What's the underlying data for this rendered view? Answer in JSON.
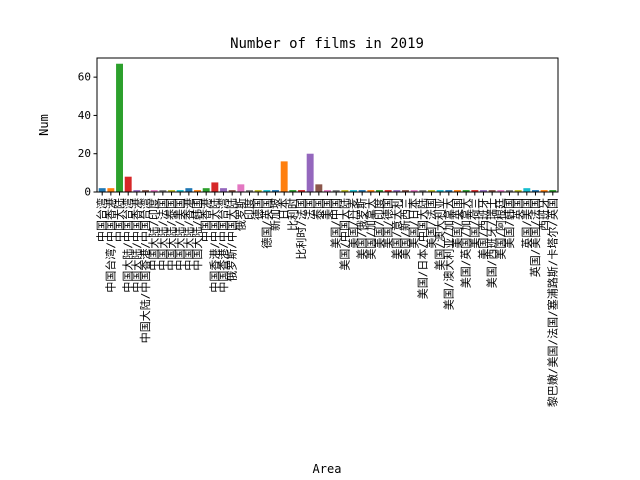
{
  "chart_data": {
    "type": "bar",
    "title": "Number of films in 2019",
    "xlabel": "Area",
    "ylabel": "Num",
    "ylim": [
      0,
      70
    ],
    "yticks": [
      0,
      20,
      40,
      60
    ],
    "grid": false,
    "categories": [
      "中国台湾",
      "中国台湾/中国香港",
      "中国大陆",
      "中国大陆/中国台湾",
      "中国大陆/中国香港",
      "中国大陆/中国香港/中国台湾",
      "中国大陆/印度",
      "中国大陆/法国",
      "中国大陆/泰国",
      "中国大陆/美国",
      "中国大陆/香港",
      "中国大陆/韩国",
      "中国香港",
      "中国香港/中国大陆",
      "中国香港/中国台湾",
      "俄罗斯/中国大陆",
      "俄罗斯",
      "印度",
      "德国",
      "德国/英国",
      "新加坡",
      "日本",
      "比利时",
      "比利时/法国",
      "法国",
      "泰国",
      "美国",
      "美国/中国",
      "美国/中国大陆",
      "美国/丹麦",
      "美国/俄罗斯",
      "美国/加拿大",
      "美国/印度",
      "美国/德国",
      "美国/意大利",
      "美国/新西兰",
      "美国/日本",
      "美国/日本/中国大陆",
      "美国/法国",
      "美国/澳大利亚",
      "美国/澳大利亚/加拿大",
      "美国/英国",
      "美国/英国/加拿大",
      "美国/荷兰",
      "美国/西班牙",
      "美国/西班牙/瑞士",
      "美国/阿根廷",
      "美国/韩国",
      "英国",
      "英国/美国",
      "英国/美国/法国",
      "西班牙",
      "黎巴嫩/美国/法国/塞浦路斯/卡塔尔/英国"
    ],
    "values": [
      2,
      2,
      67,
      8,
      1,
      1,
      1,
      1,
      1,
      1,
      2,
      1,
      2,
      5,
      2,
      1,
      4,
      1,
      1,
      1,
      1,
      16,
      1,
      1,
      20,
      4,
      1,
      1,
      1,
      1,
      1,
      1,
      1,
      1,
      1,
      1,
      1,
      1,
      1,
      1,
      1,
      1,
      1,
      1,
      1,
      1,
      1,
      1,
      1,
      2,
      1,
      1,
      1
    ],
    "colors": [
      "#1f77b4",
      "#ff7f0e",
      "#2ca02c",
      "#d62728",
      "#9467bd",
      "#8c564b",
      "#e377c2",
      "#7f7f7f",
      "#bcbd22",
      "#17becf"
    ]
  }
}
